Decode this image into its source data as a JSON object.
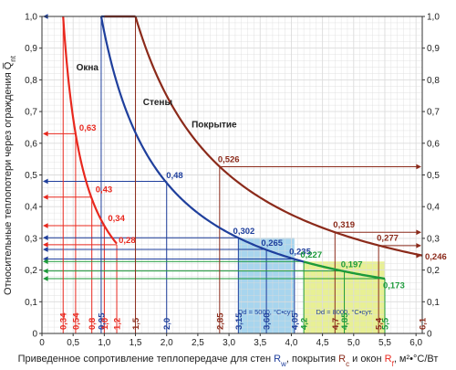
{
  "chart_data": {
    "type": "line",
    "xlabel_parts": [
      {
        "t": "Приведенное сопротивление теплопередаче для стен ",
        "c": "#222222"
      },
      {
        "t": "R",
        "c": "#1f3f9c"
      },
      {
        "t": "w",
        "c": "#1f3f9c",
        "sub": true
      },
      {
        "t": ", покрытия ",
        "c": "#222222"
      },
      {
        "t": "R",
        "c": "#8b2a1a"
      },
      {
        "t": "c",
        "c": "#8b2a1a",
        "sub": true
      },
      {
        "t": " и окон ",
        "c": "#222222"
      },
      {
        "t": "R",
        "c": "#e8281e"
      },
      {
        "t": "f",
        "c": "#e8281e",
        "sub": true
      },
      {
        "t": ", м²•°С/Вт",
        "c": "#222222"
      }
    ],
    "ylabel": "Относительные теплопотери через ограждения Q̅",
    "ylabel_sub": "nt",
    "xlim": [
      0,
      6.1
    ],
    "ylim": [
      0,
      1.0
    ],
    "x_ticks": [
      "0",
      "0,5",
      "1,0",
      "1,5",
      "2,0",
      "2,5",
      "3,0",
      "3,5",
      "4,0",
      "4,5",
      "5,0",
      "5,5",
      "6,0"
    ],
    "y_ticks": [
      "0",
      "0,1",
      "0,2",
      "0,3",
      "0,4",
      "0,5",
      "0,6",
      "0,7",
      "0,8",
      "0,9",
      "1,0"
    ],
    "grid": true,
    "series": [
      {
        "name": "Окна",
        "color": "#e8281e",
        "k": 0.34,
        "x_from": 0.34,
        "x_to": 1.2
      },
      {
        "name": "Стены",
        "color": "#1f3f9c",
        "k": 0.95,
        "x_from": 0.95,
        "x_to": 4.2
      },
      {
        "name": "Покрытие",
        "color": "#8b2a1a",
        "k": 1.5,
        "x_from": 1.5,
        "x_to": 6.1
      }
    ],
    "green_segment": {
      "color": "#1c9a3a",
      "k": 0.95,
      "x_from": 4.2,
      "x_to": 5.5
    },
    "plateaus": [
      {
        "color": "#1f3f9c",
        "x_from": 0.95,
        "x_to": 1.5
      },
      {
        "color": "#8b2a1a",
        "x_from": 1.5,
        "x_to": 1.5
      }
    ],
    "shaded_regions": [
      {
        "x_from": 3.15,
        "x_to": 4.05,
        "y_from": 0,
        "y_to": 0.302,
        "color": "#9fd0ec",
        "label": "Dd = 5000, °С•сут."
      },
      {
        "x_from": 4.2,
        "x_to": 5.5,
        "y_from": 0,
        "y_to": 0.227,
        "color": "#e6ee8a",
        "label": "Dd = 8000, °С•сут."
      }
    ],
    "x_markers": [
      {
        "label": "0,34",
        "x": 0.34,
        "color": "#e8281e"
      },
      {
        "label": "0,54",
        "x": 0.54,
        "color": "#e8281e"
      },
      {
        "label": "0,8",
        "x": 0.8,
        "color": "#e8281e"
      },
      {
        "label": "0,95",
        "x": 0.95,
        "color": "#1f3f9c"
      },
      {
        "label": "1,0",
        "x": 1.0,
        "color": "#e8281e"
      },
      {
        "label": "1,2",
        "x": 1.2,
        "color": "#e8281e"
      },
      {
        "label": "1,5",
        "x": 1.5,
        "color": "#8b2a1a"
      },
      {
        "label": "2,0",
        "x": 2.0,
        "color": "#1f3f9c"
      },
      {
        "label": "2,85",
        "x": 2.85,
        "color": "#8b2a1a"
      },
      {
        "label": "3,15",
        "x": 3.15,
        "color": "#1f3f9c"
      },
      {
        "label": "3,60",
        "x": 3.6,
        "color": "#1f3f9c"
      },
      {
        "label": "4,05",
        "x": 4.05,
        "color": "#1f3f9c"
      },
      {
        "label": "4,2",
        "x": 4.2,
        "color": "#1c9a3a"
      },
      {
        "label": "4,7",
        "x": 4.7,
        "color": "#8b2a1a"
      },
      {
        "label": "4,85",
        "x": 4.85,
        "color": "#1c9a3a"
      },
      {
        "label": "5,4",
        "x": 5.4,
        "color": "#8b2a1a"
      },
      {
        "label": "5,5",
        "x": 5.5,
        "color": "#1c9a3a"
      },
      {
        "label": "6,1",
        "x": 6.1,
        "color": "#8b2a1a"
      }
    ],
    "value_labels": [
      {
        "label": "0,63",
        "x": 0.54,
        "y": 0.63,
        "color": "#e8281e",
        "side": "left"
      },
      {
        "label": "0,43",
        "x": 0.8,
        "y": 0.43,
        "color": "#e8281e",
        "side": "left"
      },
      {
        "label": "0,34",
        "x": 1.0,
        "y": 0.34,
        "color": "#e8281e",
        "side": "left"
      },
      {
        "label": "0,28",
        "x": 1.2,
        "y": 0.28,
        "color": "#e8281e",
        "side": "left"
      },
      {
        "label": "0,48",
        "x": 2.0,
        "y": 0.48,
        "color": "#1f3f9c",
        "side": "left"
      },
      {
        "label": "0,302",
        "x": 3.15,
        "y": 0.302,
        "color": "#1f3f9c",
        "side": "left"
      },
      {
        "label": "0,265",
        "x": 3.6,
        "y": 0.265,
        "color": "#1f3f9c",
        "side": "left"
      },
      {
        "label": "0,235",
        "x": 4.05,
        "y": 0.235,
        "color": "#1f3f9c",
        "side": "left"
      },
      {
        "label": "0,227",
        "x": 4.2,
        "y": 0.227,
        "color": "#1c9a3a",
        "side": "left"
      },
      {
        "label": "0,197",
        "x": 4.85,
        "y": 0.197,
        "color": "#1c9a3a",
        "side": "left"
      },
      {
        "label": "0,173",
        "x": 5.5,
        "y": 0.173,
        "color": "#1c9a3a",
        "side": "left"
      },
      {
        "label": "0,526",
        "x": 2.85,
        "y": 0.526,
        "color": "#8b2a1a",
        "side": "right"
      },
      {
        "label": "0,319",
        "x": 4.7,
        "y": 0.319,
        "color": "#8b2a1a",
        "side": "right"
      },
      {
        "label": "0,277",
        "x": 5.4,
        "y": 0.277,
        "color": "#8b2a1a",
        "side": "right"
      },
      {
        "label": "0,246",
        "x": 6.1,
        "y": 0.246,
        "color": "#8b2a1a",
        "side": "right"
      }
    ]
  }
}
